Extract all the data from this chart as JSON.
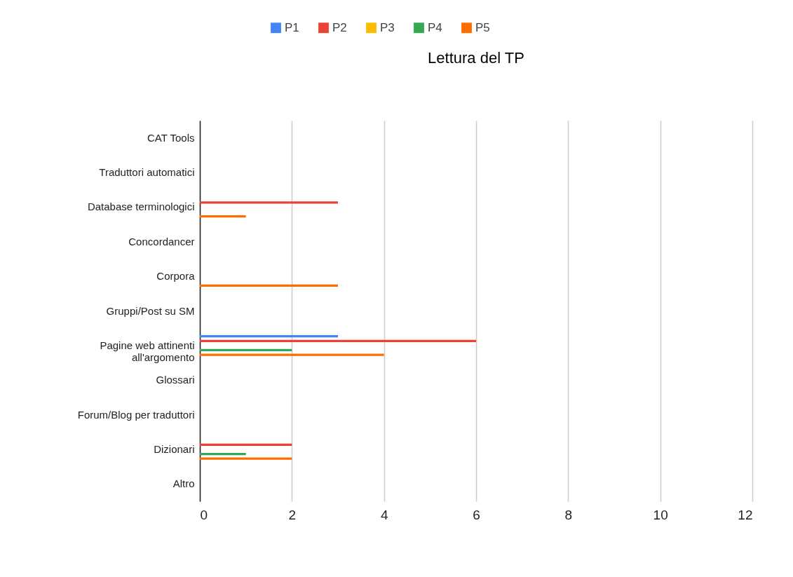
{
  "chart_data": {
    "type": "bar",
    "title": "Lettura del TP",
    "orientation": "horizontal",
    "categories": [
      "CAT Tools",
      "Traduttori automatici",
      "Database terminologici",
      "Concordancer",
      "Corpora",
      "Gruppi/Post su SM",
      "Pagine web attinenti all'argomento",
      "Glossari",
      "Forum/Blog per traduttori",
      "Dizionari",
      "Altro"
    ],
    "series": [
      {
        "name": "P1",
        "color": "#4285f4",
        "values": [
          null,
          null,
          null,
          null,
          null,
          null,
          3,
          null,
          null,
          null,
          null
        ]
      },
      {
        "name": "P2",
        "color": "#ea4335",
        "values": [
          null,
          null,
          3,
          null,
          null,
          null,
          6,
          null,
          null,
          2,
          null
        ]
      },
      {
        "name": "P3",
        "color": "#fbbc04",
        "values": [
          null,
          null,
          null,
          null,
          null,
          null,
          null,
          null,
          null,
          null,
          null
        ]
      },
      {
        "name": "P4",
        "color": "#34a853",
        "values": [
          null,
          null,
          null,
          null,
          null,
          null,
          2,
          null,
          null,
          1,
          null
        ]
      },
      {
        "name": "P5",
        "color": "#ff6d01",
        "values": [
          null,
          null,
          1,
          null,
          3,
          null,
          4,
          null,
          null,
          2,
          null
        ]
      }
    ],
    "xlim": [
      0,
      12
    ],
    "xticks": [
      0,
      2,
      4,
      6,
      8,
      10,
      12
    ],
    "grid": "x",
    "legend": "top"
  }
}
